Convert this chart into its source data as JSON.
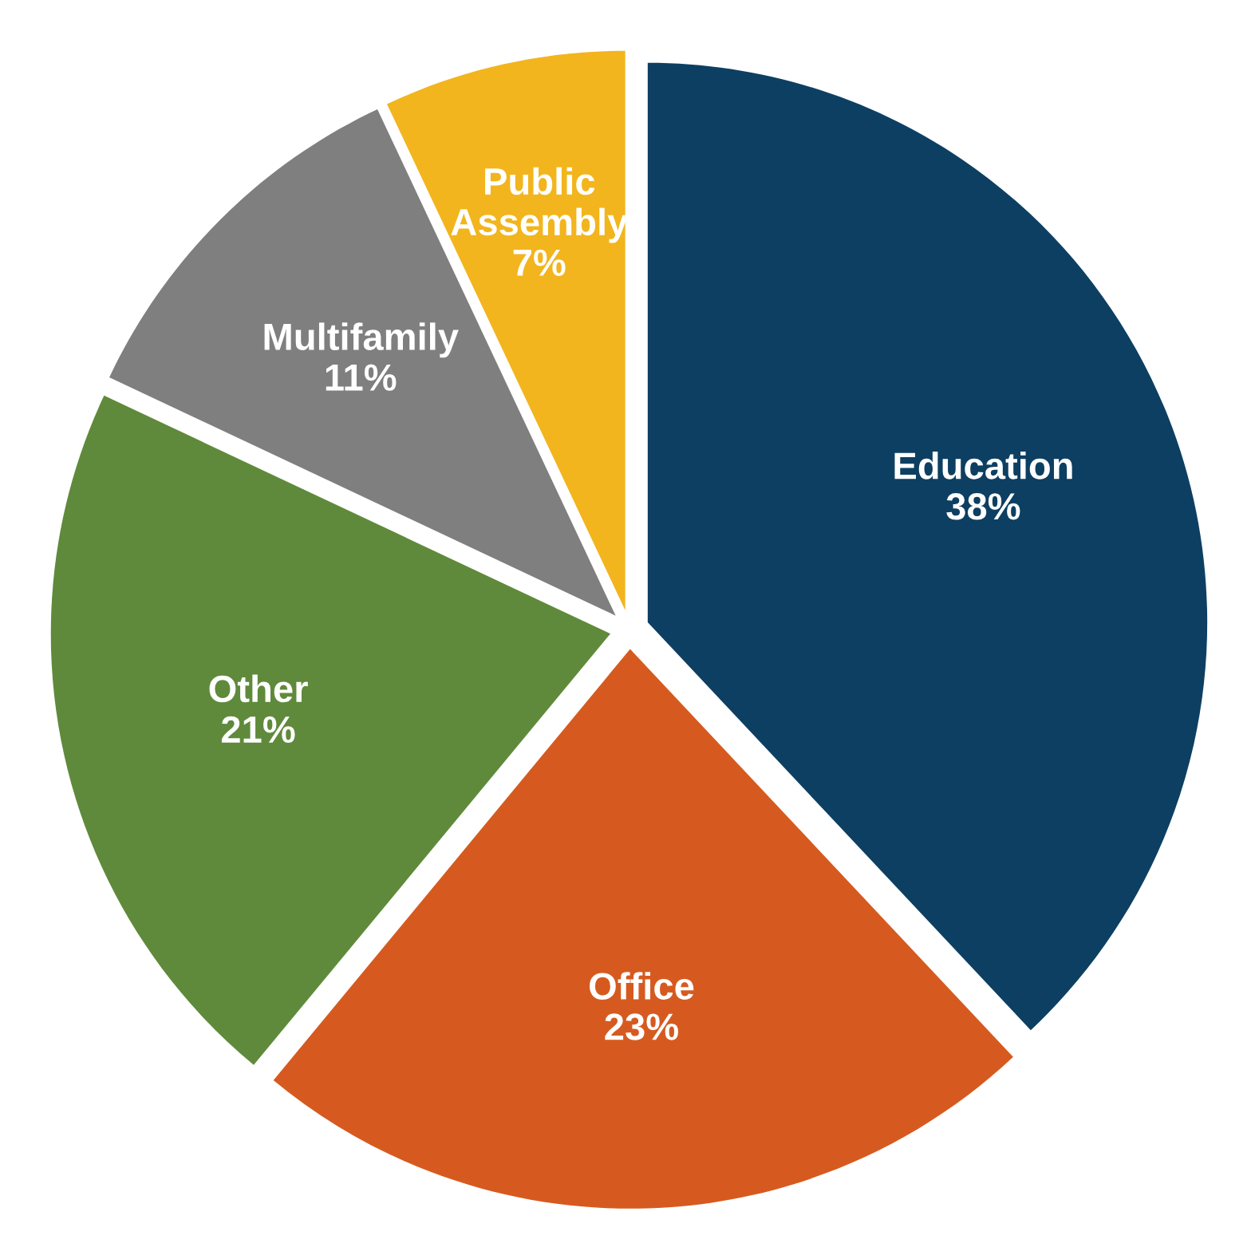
{
  "chart_data": {
    "type": "pie",
    "categories": [
      "Education",
      "Office",
      "Other",
      "Multifamily",
      "Public Assembly"
    ],
    "values": [
      38,
      23,
      21,
      11,
      7
    ],
    "value_labels": [
      "38%",
      "23%",
      "21%",
      "11%",
      "7%"
    ],
    "colors": [
      "#0d3f62",
      "#d65a1f",
      "#5f8a3b",
      "#7f7f7f",
      "#f2b51d"
    ],
    "legend": false
  }
}
